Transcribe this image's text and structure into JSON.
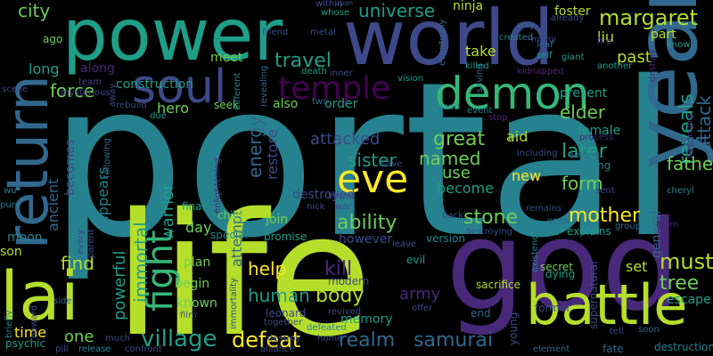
{
  "background": "#000000",
  "palette": {
    "purple-dark": "#440154",
    "purple": "#482878",
    "indigo": "#3e4989",
    "blue": "#31688e",
    "teal": "#26828e",
    "cyan-green": "#1f9e89",
    "green": "#35b779",
    "light-green": "#6ece58",
    "yellow-green": "#b5de2b",
    "yellow": "#fde725"
  },
  "words": [
    "portal",
    "life",
    "god",
    "world",
    "power",
    "year",
    "battle",
    "return",
    "lai",
    "soul",
    "demon",
    "eve",
    "temple",
    "fight",
    "village",
    "realm",
    "samurai",
    "defeat",
    "city",
    "margaret",
    "universe",
    "travel",
    "force",
    "elder",
    "reveals",
    "attack",
    "father",
    "mother",
    "stone",
    "must",
    "tree",
    "ability",
    "sister",
    "named",
    "great",
    "later",
    "form",
    "new",
    "use",
    "become",
    "help",
    "kill",
    "human",
    "body",
    "army",
    "immortal",
    "powerful",
    "attempt",
    "energy",
    "restore",
    "spirit",
    "hero",
    "warrior",
    "appears",
    "ancient",
    "becomes",
    "one",
    "time",
    "find",
    "moon",
    "son",
    "along",
    "long",
    "ago",
    "construction",
    "meet",
    "also",
    "order",
    "attacked",
    "aid",
    "female",
    "present",
    "past",
    "part",
    "liu",
    "foster",
    "ninja",
    "take",
    "destroyed",
    "however",
    "join",
    "day",
    "plan",
    "begin",
    "known",
    "memory",
    "set",
    "escape",
    "destruction",
    "fate",
    "former",
    "end",
    "young",
    "leonard",
    "modern",
    "sacrifice",
    "secret",
    "dying",
    "evil",
    "supernatural",
    "general",
    "owl",
    "team",
    "mysterious",
    "rebuild",
    "due",
    "seek",
    "final",
    "child",
    "special",
    "promise",
    "version",
    "leave",
    "open",
    "rescue",
    "explains",
    "element",
    "release",
    "confront",
    "psychic",
    "briefly",
    "howard",
    "every",
    "parent",
    "following",
    "pure",
    "scene",
    "wu",
    "whose",
    "friend",
    "metal",
    "death",
    "inner",
    "vision",
    "kidnapped",
    "giant",
    "another",
    "fire",
    "destiny",
    "already",
    "self",
    "leaf",
    "many",
    "way",
    "created",
    "killed",
    "event",
    "land",
    "stop",
    "revealing",
    "different",
    "saving",
    "two",
    "within",
    "upon",
    "eventually",
    "away",
    "film",
    "side",
    "pill",
    "much",
    "alliance",
    "home",
    "destroy",
    "together",
    "revived",
    "defeated",
    "offer",
    "tell",
    "soon",
    "among",
    "remains",
    "defeating",
    "including",
    "learn",
    "group",
    "cheryl",
    "sent",
    "back",
    "destroying",
    "existence",
    "break",
    "nick",
    "war",
    "save",
    "process",
    "becoming",
    "know",
    "immortality",
    "enlightening"
  ],
  "word_colors": {
    "portal": "teal",
    "life": "yellow-green",
    "god": "purple",
    "world": "indigo",
    "power": "cyan-green",
    "year": "blue",
    "battle": "yellow-green",
    "return": "blue",
    "lai": "yellow-green",
    "soul": "indigo",
    "demon": "green",
    "eve": "yellow",
    "temple": "purple-dark",
    "fight": "green",
    "village": "cyan-green",
    "realm": "blue",
    "samurai": "blue",
    "defeat": "yellow",
    "city": "light-green",
    "margaret": "yellow-green",
    "universe": "cyan-green",
    "travel": "cyan-green",
    "force": "light-green",
    "elder": "light-green",
    "reveals": "cyan-green",
    "attack": "blue",
    "father": "light-green",
    "mother": "yellow",
    "stone": "light-green",
    "must": "yellow-green",
    "tree": "light-green",
    "ability": "light-green",
    "sister": "cyan-green",
    "named": "light-green",
    "great": "light-green",
    "later": "cyan-green",
    "form": "light-green",
    "new": "yellow",
    "use": "light-green",
    "become": "cyan-green",
    "help": "yellow",
    "kill": "purple",
    "human": "cyan-green",
    "body": "yellow-green",
    "army": "purple",
    "immortal": "cyan-green",
    "powerful": "cyan-green",
    "attempt": "blue",
    "energy": "blue",
    "restore": "indigo",
    "spirit": "teal",
    "hero": "light-green",
    "warrior": "cyan-green",
    "appears": "teal",
    "ancient": "blue",
    "becomes": "indigo",
    "one": "light-green",
    "time": "yellow",
    "find": "yellow-green",
    "moon": "teal",
    "son": "yellow-green",
    "along": "purple",
    "long": "cyan-green",
    "ago": "light-green",
    "construction": "cyan-green",
    "meet": "light-green",
    "also": "light-green",
    "order": "cyan-green",
    "attacked": "indigo",
    "aid": "yellow-green",
    "female": "cyan-green",
    "present": "cyan-green",
    "past": "yellow-green",
    "part": "yellow-green",
    "liu": "yellow-green",
    "foster": "yellow-green",
    "ninja": "yellow-green",
    "take": "yellow-green",
    "destroyed": "indigo",
    "however": "indigo",
    "join": "light-green",
    "day": "light-green",
    "plan": "light-green",
    "begin": "light-green",
    "known": "light-green",
    "memory": "cyan-green",
    "set": "yellow-green",
    "escape": "cyan-green",
    "destruction": "teal",
    "fate": "blue",
    "former": "indigo",
    "end": "blue",
    "young": "indigo",
    "leonard": "indigo",
    "modern": "indigo",
    "sacrifice": "yellow-green",
    "secret": "light-green",
    "dying": "cyan-green",
    "evil": "cyan-green",
    "supernatural": "indigo",
    "general": "blue",
    "owl": "blue",
    "team": "indigo",
    "mysterious": "indigo",
    "rebuild": "indigo",
    "due": "cyan-green",
    "seek": "light-green",
    "final": "cyan-green",
    "child": "light-green",
    "special": "teal",
    "promise": "cyan-green",
    "version": "teal",
    "leave": "indigo",
    "open": "blue",
    "rescue": "teal",
    "explains": "cyan-green",
    "element": "blue",
    "release": "teal",
    "confront": "indigo",
    "psychic": "cyan-green",
    "briefly": "teal",
    "howard": "indigo",
    "every": "indigo",
    "parent": "indigo",
    "following": "blue",
    "pure": "teal",
    "scene": "indigo",
    "wu": "teal",
    "whose": "cyan-green",
    "friend": "indigo",
    "metal": "indigo",
    "death": "cyan-green",
    "inner": "indigo",
    "vision": "cyan-green",
    "kidnapped": "purple",
    "giant": "cyan-green",
    "another": "cyan-green",
    "fire": "indigo",
    "destiny": "purple",
    "already": "indigo",
    "self": "cyan-green",
    "leaf": "blue",
    "many": "indigo",
    "way": "blue",
    "created": "teal",
    "killed": "cyan-green",
    "event": "teal",
    "land": "teal",
    "stop": "purple",
    "revealing": "blue",
    "different": "teal",
    "saving": "blue",
    "two": "blue",
    "within": "indigo",
    "upon": "indigo",
    "eventually": "blue",
    "away": "indigo",
    "film": "indigo",
    "side": "blue",
    "pill": "indigo",
    "much": "indigo",
    "alliance": "indigo",
    "home": "indigo",
    "destroy": "indigo",
    "together": "indigo",
    "revived": "indigo",
    "defeated": "teal",
    "offer": "indigo",
    "tell": "indigo",
    "soon": "blue",
    "among": "blue",
    "remains": "indigo",
    "defeating": "teal",
    "including": "indigo",
    "learn": "purple",
    "group": "blue",
    "cheryl": "teal",
    "sent": "indigo",
    "back": "indigo",
    "destroying": "indigo",
    "existence": "teal",
    "break": "indigo",
    "nick": "indigo",
    "war": "indigo",
    "save": "indigo",
    "process": "purple",
    "becoming": "purple",
    "know": "cyan-green",
    "immortality": "indigo",
    "enlightening": "purple"
  }
}
